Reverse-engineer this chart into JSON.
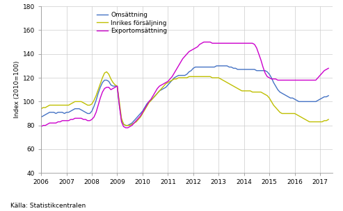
{
  "title": "",
  "ylabel": "Index (2010=100)",
  "source": "Källa: Statistikcentralen",
  "ylim": [
    40,
    180
  ],
  "yticks": [
    40,
    60,
    80,
    100,
    120,
    140,
    160,
    180
  ],
  "xlim": [
    2006.0,
    2017.5
  ],
  "xticks": [
    2006,
    2007,
    2008,
    2009,
    2010,
    2011,
    2012,
    2013,
    2014,
    2015,
    2016,
    2017
  ],
  "legend_labels": [
    "Omsättning",
    "Inrikes försäljning",
    "Exportomsättning"
  ],
  "colors": [
    "#4472C4",
    "#BFBF00",
    "#CC00CC"
  ],
  "background_color": "#FFFFFF",
  "grid_color": "#CCCCCC",
  "x": [
    2006.0,
    2006.083,
    2006.167,
    2006.25,
    2006.333,
    2006.417,
    2006.5,
    2006.583,
    2006.667,
    2006.75,
    2006.833,
    2006.917,
    2007.0,
    2007.083,
    2007.167,
    2007.25,
    2007.333,
    2007.417,
    2007.5,
    2007.583,
    2007.667,
    2007.75,
    2007.833,
    2007.917,
    2008.0,
    2008.083,
    2008.167,
    2008.25,
    2008.333,
    2008.417,
    2008.5,
    2008.583,
    2008.667,
    2008.75,
    2008.833,
    2008.917,
    2009.0,
    2009.083,
    2009.167,
    2009.25,
    2009.333,
    2009.417,
    2009.5,
    2009.583,
    2009.667,
    2009.75,
    2009.833,
    2009.917,
    2010.0,
    2010.083,
    2010.167,
    2010.25,
    2010.333,
    2010.417,
    2010.5,
    2010.583,
    2010.667,
    2010.75,
    2010.833,
    2010.917,
    2011.0,
    2011.083,
    2011.167,
    2011.25,
    2011.333,
    2011.417,
    2011.5,
    2011.583,
    2011.667,
    2011.75,
    2011.833,
    2011.917,
    2012.0,
    2012.083,
    2012.167,
    2012.25,
    2012.333,
    2012.417,
    2012.5,
    2012.583,
    2012.667,
    2012.75,
    2012.833,
    2012.917,
    2013.0,
    2013.083,
    2013.167,
    2013.25,
    2013.333,
    2013.417,
    2013.5,
    2013.583,
    2013.667,
    2013.75,
    2013.833,
    2013.917,
    2014.0,
    2014.083,
    2014.167,
    2014.25,
    2014.333,
    2014.417,
    2014.5,
    2014.583,
    2014.667,
    2014.75,
    2014.833,
    2014.917,
    2015.0,
    2015.083,
    2015.167,
    2015.25,
    2015.333,
    2015.417,
    2015.5,
    2015.583,
    2015.667,
    2015.75,
    2015.833,
    2015.917,
    2016.0,
    2016.083,
    2016.167,
    2016.25,
    2016.333,
    2016.417,
    2016.5,
    2016.583,
    2016.667,
    2016.75,
    2016.833,
    2016.917,
    2017.0,
    2017.083,
    2017.167,
    2017.25,
    2017.333
  ],
  "omsattning": [
    87,
    88,
    89,
    90,
    91,
    91,
    91,
    90,
    91,
    91,
    91,
    90,
    91,
    91,
    92,
    93,
    94,
    94,
    94,
    93,
    92,
    91,
    90,
    90,
    92,
    96,
    101,
    107,
    112,
    116,
    118,
    118,
    117,
    114,
    113,
    113,
    113,
    97,
    85,
    81,
    80,
    80,
    81,
    82,
    84,
    86,
    88,
    90,
    92,
    95,
    98,
    100,
    101,
    103,
    105,
    107,
    109,
    110,
    111,
    112,
    114,
    116,
    118,
    120,
    121,
    122,
    122,
    122,
    122,
    123,
    125,
    126,
    128,
    129,
    129,
    129,
    129,
    129,
    129,
    129,
    129,
    129,
    129,
    130,
    130,
    130,
    130,
    130,
    130,
    129,
    129,
    128,
    128,
    127,
    127,
    127,
    127,
    127,
    127,
    127,
    127,
    127,
    126,
    126,
    126,
    126,
    126,
    125,
    123,
    120,
    116,
    113,
    110,
    108,
    107,
    106,
    105,
    104,
    103,
    103,
    102,
    101,
    100,
    100,
    100,
    100,
    100,
    100,
    100,
    100,
    100,
    101,
    102,
    103,
    104,
    104,
    105
  ],
  "inrikes": [
    94,
    95,
    95,
    96,
    97,
    97,
    97,
    97,
    97,
    97,
    97,
    97,
    97,
    97,
    98,
    99,
    100,
    100,
    100,
    100,
    99,
    98,
    97,
    97,
    98,
    101,
    105,
    110,
    115,
    120,
    124,
    125,
    123,
    119,
    116,
    114,
    113,
    100,
    86,
    81,
    80,
    80,
    80,
    81,
    82,
    83,
    85,
    87,
    90,
    93,
    96,
    99,
    101,
    103,
    105,
    107,
    109,
    111,
    113,
    115,
    116,
    117,
    118,
    119,
    119,
    120,
    120,
    120,
    120,
    120,
    121,
    121,
    121,
    121,
    121,
    121,
    121,
    121,
    121,
    121,
    121,
    120,
    120,
    120,
    120,
    119,
    118,
    117,
    116,
    115,
    114,
    113,
    112,
    111,
    110,
    109,
    109,
    109,
    109,
    109,
    108,
    108,
    108,
    108,
    108,
    107,
    106,
    105,
    103,
    100,
    97,
    95,
    93,
    91,
    90,
    90,
    90,
    90,
    90,
    90,
    90,
    89,
    88,
    87,
    86,
    85,
    84,
    83,
    83,
    83,
    83,
    83,
    83,
    83,
    84,
    84,
    85
  ],
  "export": [
    79,
    80,
    80,
    81,
    82,
    82,
    82,
    82,
    83,
    83,
    84,
    84,
    84,
    84,
    85,
    85,
    86,
    86,
    86,
    86,
    85,
    85,
    84,
    84,
    85,
    87,
    91,
    97,
    103,
    108,
    111,
    112,
    112,
    110,
    111,
    112,
    113,
    97,
    83,
    79,
    78,
    78,
    79,
    80,
    82,
    84,
    86,
    88,
    91,
    94,
    97,
    100,
    102,
    105,
    108,
    111,
    113,
    114,
    115,
    116,
    117,
    119,
    121,
    124,
    127,
    130,
    133,
    136,
    138,
    140,
    142,
    143,
    144,
    145,
    146,
    148,
    149,
    150,
    150,
    150,
    150,
    149,
    149,
    149,
    149,
    149,
    149,
    149,
    149,
    149,
    149,
    149,
    149,
    149,
    149,
    149,
    149,
    149,
    149,
    149,
    149,
    148,
    145,
    140,
    135,
    129,
    124,
    121,
    120,
    119,
    119,
    119,
    118,
    118,
    118,
    118,
    118,
    118,
    118,
    118,
    118,
    118,
    118,
    118,
    118,
    118,
    118,
    118,
    118,
    118,
    118,
    120,
    122,
    124,
    126,
    127,
    128
  ]
}
